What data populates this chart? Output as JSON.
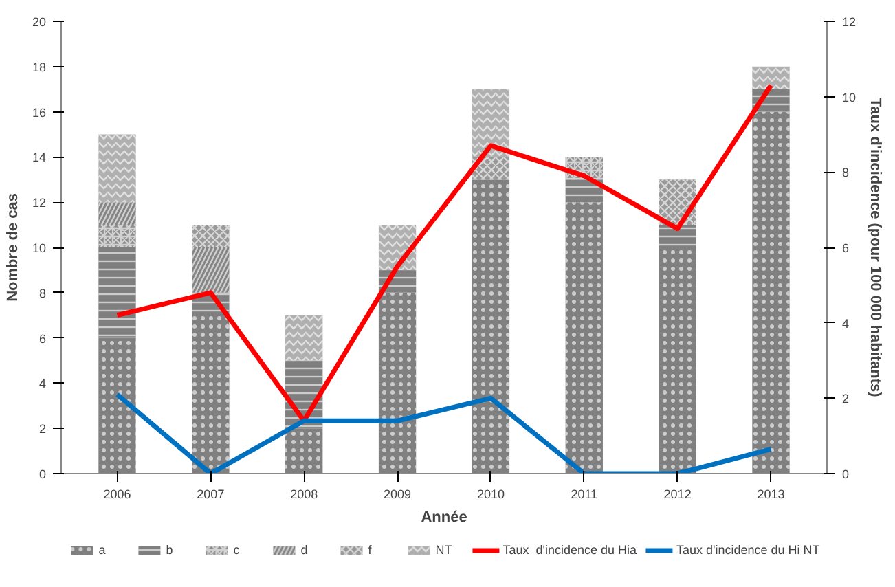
{
  "chart_data": {
    "type": "bar",
    "stacked": true,
    "categories": [
      "2006",
      "2007",
      "2008",
      "2009",
      "2010",
      "2011",
      "2012",
      "2013"
    ],
    "xlabel": "Année",
    "ylabel": "Nombre de cas",
    "y2label": "Taux d'incidence (pour 100 000 habitants)",
    "ylim": [
      0,
      20
    ],
    "yticks": [
      0,
      2,
      4,
      6,
      8,
      10,
      12,
      14,
      16,
      18,
      20
    ],
    "y2lim": [
      0,
      12
    ],
    "y2ticks": [
      0,
      2,
      4,
      6,
      8,
      10,
      12
    ],
    "grid": false,
    "legend": "bottom",
    "series": [
      {
        "name": "a",
        "color": "#808080",
        "values": [
          6,
          7,
          2,
          8,
          13,
          12,
          10,
          16
        ]
      },
      {
        "name": "b",
        "color": "#7f7f7f",
        "values": [
          4,
          1,
          3,
          1,
          0,
          1,
          1,
          1
        ]
      },
      {
        "name": "c",
        "color": "#8c8c8c",
        "values": [
          1,
          0,
          0,
          0,
          0,
          1,
          0,
          0
        ]
      },
      {
        "name": "d",
        "color": "#858585",
        "values": [
          1,
          2,
          0,
          0,
          0,
          0,
          0,
          0
        ]
      },
      {
        "name": "f",
        "color": "#999999",
        "values": [
          0,
          1,
          0,
          0,
          1,
          0,
          2,
          0
        ]
      },
      {
        "name": "NT",
        "color": "#b0b0b0",
        "values": [
          3,
          0,
          2,
          2,
          3,
          0,
          0,
          1
        ]
      },
      {
        "name": "Taux  d'incidence du Hia",
        "type": "line",
        "axis": "y2",
        "color": "#ff0000",
        "values": [
          4.2,
          4.8,
          1.4,
          5.5,
          8.7,
          7.9,
          6.5,
          10.3
        ]
      },
      {
        "name": "Taux d'incidence du Hi NT",
        "type": "line",
        "axis": "y2",
        "color": "#0070c0",
        "values": [
          2.1,
          0,
          1.4,
          1.4,
          2.0,
          0,
          0,
          0.65
        ]
      }
    ]
  }
}
